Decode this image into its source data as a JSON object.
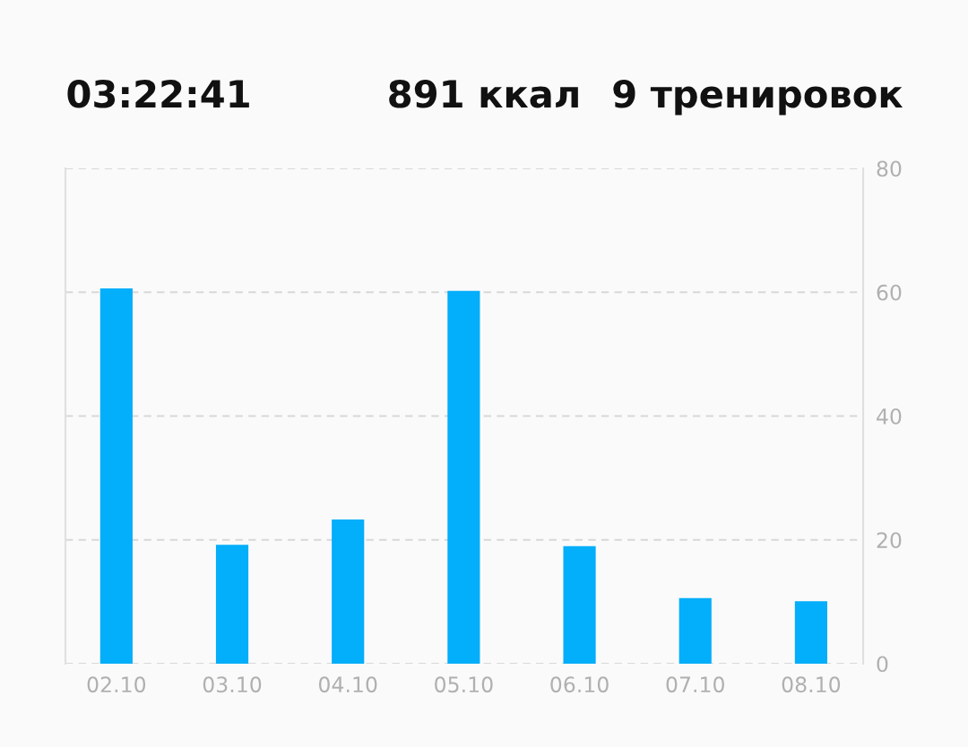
{
  "chart_data": {
    "type": "bar",
    "annotations": [
      "03:22:41",
      "891 ккал",
      "9 тренировок"
    ],
    "categories": [
      "02.10",
      "03.10",
      "04.10",
      "05.10",
      "06.10",
      "07.10",
      "08.10"
    ],
    "values": [
      60.6,
      19.2,
      23.3,
      60.2,
      19,
      10.6,
      10.1
    ],
    "color": "#03aefa",
    "ylim": [
      0,
      80
    ],
    "yticks": [
      0,
      20,
      40,
      60,
      80
    ],
    "grid": "y",
    "legend": false
  }
}
